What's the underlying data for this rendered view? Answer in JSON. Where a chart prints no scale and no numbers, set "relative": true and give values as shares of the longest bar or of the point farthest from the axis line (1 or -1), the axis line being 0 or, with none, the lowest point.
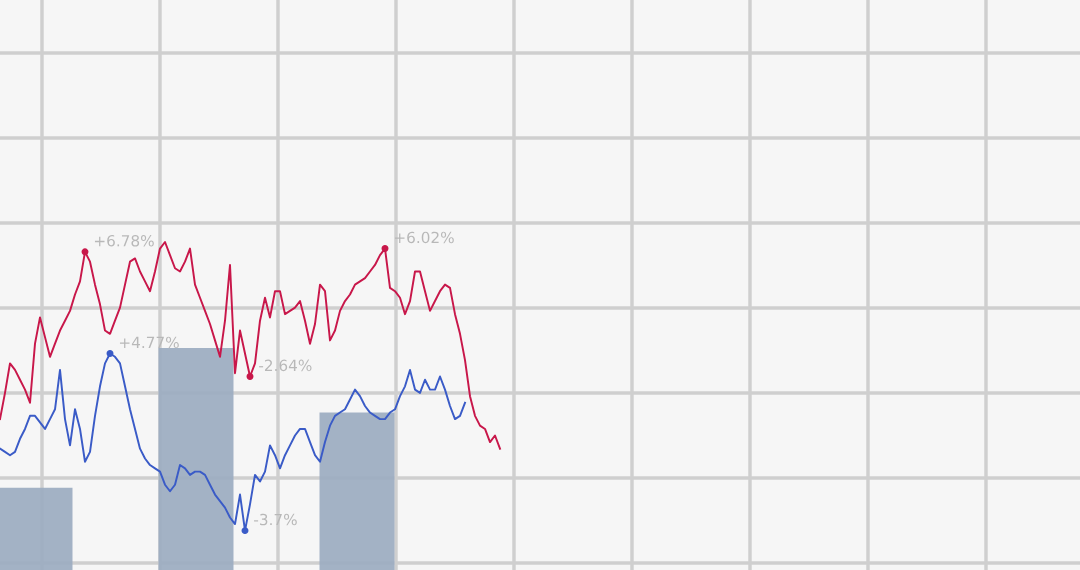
{
  "chart_data": [
    {
      "type": "bar",
      "relative": true,
      "grid": true,
      "color": "#9aabc0",
      "categories": [
        null,
        null,
        null
      ],
      "values": [
        0.37,
        1,
        0.71
      ]
    },
    {
      "type": "line",
      "relative": true,
      "categories": [
        null,
        null,
        null,
        null,
        null,
        null,
        null,
        null,
        null,
        null,
        null,
        null,
        null,
        null,
        null,
        null,
        null,
        null,
        null,
        null,
        null,
        null,
        null,
        null,
        null,
        null,
        null,
        null,
        null,
        null,
        null,
        null,
        null,
        null,
        null,
        null,
        null,
        null,
        null,
        null,
        null,
        null,
        null,
        null,
        null,
        null,
        null,
        null,
        null,
        null,
        null,
        null,
        null,
        null,
        null,
        null,
        null,
        null,
        null,
        null,
        null,
        null,
        null,
        null,
        null,
        null,
        null,
        null,
        null,
        null,
        null,
        null,
        null,
        null,
        null,
        null,
        null,
        null,
        null,
        null,
        null,
        null,
        null,
        null,
        null,
        null,
        null,
        null,
        null,
        null,
        null,
        null,
        null,
        null,
        null,
        null,
        null,
        null,
        null,
        null,
        null
      ],
      "series": [
        {
          "color": "#c8174a",
          "values": [
            0.46,
            0.54,
            0.63,
            0.61,
            0.58,
            0.55,
            0.51,
            0.69,
            0.77,
            0.71,
            0.65,
            0.69,
            0.73,
            0.76,
            0.79,
            0.84,
            0.88,
            0.97,
            0.94,
            0.87,
            0.81,
            0.73,
            0.72,
            0.76,
            0.8,
            0.87,
            0.94,
            0.95,
            0.91,
            0.88,
            0.85,
            0.91,
            0.98,
            1.0,
            0.96,
            0.92,
            0.91,
            0.94,
            0.98,
            0.87,
            0.83,
            0.79,
            0.75,
            0.7,
            0.65,
            0.76,
            0.93,
            0.6,
            0.73,
            0.66,
            0.59,
            0.63,
            0.76,
            0.83,
            0.77,
            0.85,
            0.85,
            0.78,
            0.79,
            0.8,
            0.82,
            0.76,
            0.69,
            0.75,
            0.87,
            0.85,
            0.7,
            0.73,
            0.79,
            0.82,
            0.84,
            0.87,
            0.88,
            0.89,
            0.91,
            0.93,
            0.96,
            0.98,
            0.86,
            0.85,
            0.83,
            0.78,
            0.82,
            0.91,
            0.91,
            0.85,
            0.79,
            0.82,
            0.85,
            0.87,
            0.86,
            0.78,
            0.72,
            0.64,
            0.53,
            0.47,
            0.44,
            0.43,
            0.39,
            0.41,
            0.37
          ]
        },
        {
          "color": "#3a5bc7",
          "values": [
            0.37,
            0.36,
            0.35,
            0.36,
            0.4,
            0.43,
            0.47,
            0.47,
            0.45,
            0.43,
            0.46,
            0.49,
            0.61,
            0.46,
            0.38,
            0.49,
            0.43,
            0.33,
            0.36,
            0.47,
            0.56,
            0.63,
            0.66,
            0.65,
            0.63,
            0.56,
            0.49,
            0.43,
            0.37,
            0.34,
            0.32,
            0.31,
            0.3,
            0.26,
            0.24,
            0.26,
            0.32,
            0.31,
            0.29,
            0.3,
            0.3,
            0.29,
            0.26,
            0.23,
            0.21,
            0.19,
            0.16,
            0.14,
            0.23,
            0.12,
            0.2,
            0.29,
            0.27,
            0.3,
            0.38,
            0.35,
            0.31,
            0.35,
            0.38,
            0.41,
            0.43,
            0.43,
            0.39,
            0.35,
            0.33,
            0.39,
            0.44,
            0.47,
            0.48,
            0.49,
            0.52,
            0.55,
            0.53,
            0.5,
            0.48,
            0.47,
            0.46,
            0.46,
            0.48,
            0.49,
            0.53,
            0.56,
            0.61,
            0.55,
            0.54,
            0.58,
            0.55,
            0.55,
            0.59,
            0.55,
            0.5,
            0.46,
            0.47,
            0.51,
            null,
            null,
            null,
            null,
            null,
            null,
            null
          ]
        }
      ],
      "annotations": [
        "+6.78%",
        "-2.64%",
        "+6.02%",
        "+4.77%",
        "-3.7%"
      ]
    }
  ]
}
